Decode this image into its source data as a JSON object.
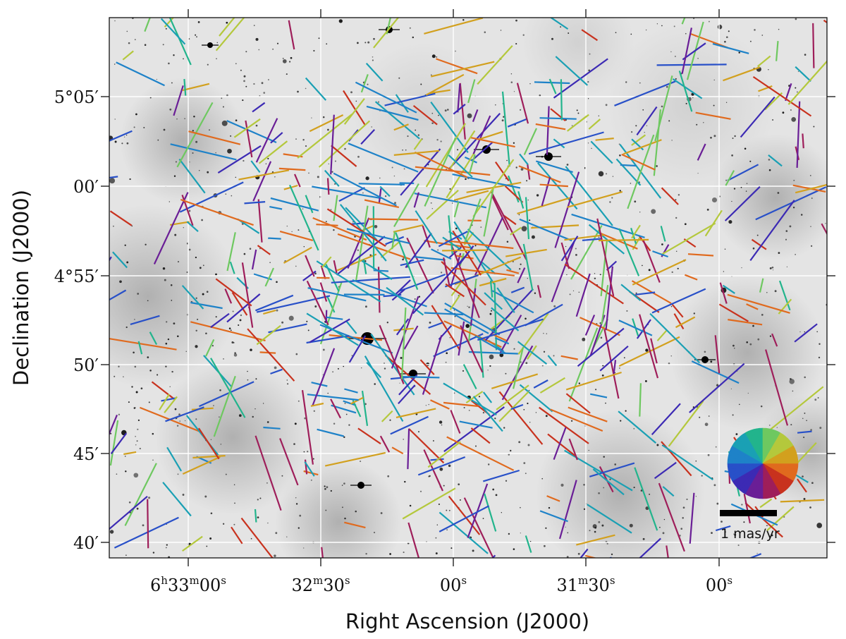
{
  "chart_data": {
    "type": "scatter",
    "subtype": "proper-motion vector field over greyscale sky image",
    "xlabel": "Right Ascension (J2000)",
    "ylabel": "Declination (J2000)",
    "x_ticks": [
      {
        "value": "6:33:00",
        "label": "6h33m00s",
        "parts": [
          "6",
          "h",
          "33",
          "m",
          "00",
          "s"
        ]
      },
      {
        "value": "6:32:30",
        "label": "32m30s",
        "parts": [
          "",
          "",
          "32",
          "m",
          "30",
          "s"
        ]
      },
      {
        "value": "6:32:00",
        "label": "00s",
        "parts": [
          "",
          "",
          "",
          "",
          "00",
          "s"
        ]
      },
      {
        "value": "6:31:30",
        "label": "31m30s",
        "parts": [
          "",
          "",
          "31",
          "m",
          "30",
          "s"
        ]
      },
      {
        "value": "6:31:00",
        "label": "00s",
        "parts": [
          "",
          "",
          "",
          "",
          "00",
          "s"
        ]
      }
    ],
    "y_ticks": [
      {
        "value": "+5:05",
        "label": "5°05′"
      },
      {
        "value": "+5:00",
        "label": "00′"
      },
      {
        "value": "+4:55",
        "label": "4°55′"
      },
      {
        "value": "+4:50",
        "label": "50′"
      },
      {
        "value": "+4:45",
        "label": "45′"
      },
      {
        "value": "+4:40",
        "label": "40′"
      }
    ],
    "grid": true,
    "grid_color": "#ffffff",
    "background": "greyscale nebula image (inverted, dark stars on light background)",
    "vector_color_encoding": "direction of motion, colour wheel inset",
    "color_wheel_position": "bottom-right",
    "scale_bar": {
      "label": "1 mas/yr",
      "length_mas_per_yr": 1
    },
    "colormap": [
      "#e06a1e",
      "#c8321e",
      "#9e1e5a",
      "#6a1e96",
      "#3c2ab4",
      "#2850c8",
      "#1e82c8",
      "#1aa0b4",
      "#22b48c",
      "#6ec860",
      "#b4c83c",
      "#d2a01e"
    ]
  }
}
